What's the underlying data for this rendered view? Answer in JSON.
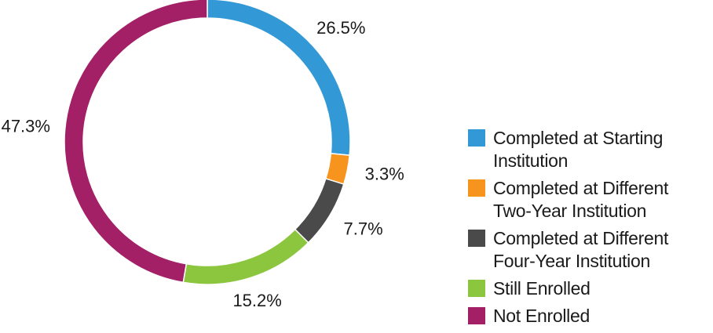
{
  "chart_data": {
    "type": "pie",
    "variant": "donut",
    "categories": [
      "Completed at Starting Institution",
      "Completed at Different Two-Year Institution",
      "Completed at Different Four-Year Institution",
      "Still Enrolled",
      "Not Enrolled"
    ],
    "values": [
      26.5,
      3.3,
      7.7,
      15.2,
      47.3
    ],
    "data_labels": [
      "26.5%",
      "3.3%",
      "7.7%",
      "15.2%",
      "47.3%"
    ],
    "colors": [
      "#3399d6",
      "#f7941d",
      "#4a4a4a",
      "#8cc63f",
      "#a31f66"
    ],
    "legend_placement": "right",
    "title": ""
  },
  "legend": {
    "items": [
      {
        "label": "Completed at Starting\nInstitution",
        "color": "#3399d6"
      },
      {
        "label": "Completed at Different\nTwo-Year Institution",
        "color": "#f7941d"
      },
      {
        "label": "Completed at Different\nFour-Year Institution",
        "color": "#4a4a4a"
      },
      {
        "label": "Still Enrolled",
        "color": "#8cc63f"
      },
      {
        "label": "Not Enrolled",
        "color": "#a31f66"
      }
    ]
  }
}
